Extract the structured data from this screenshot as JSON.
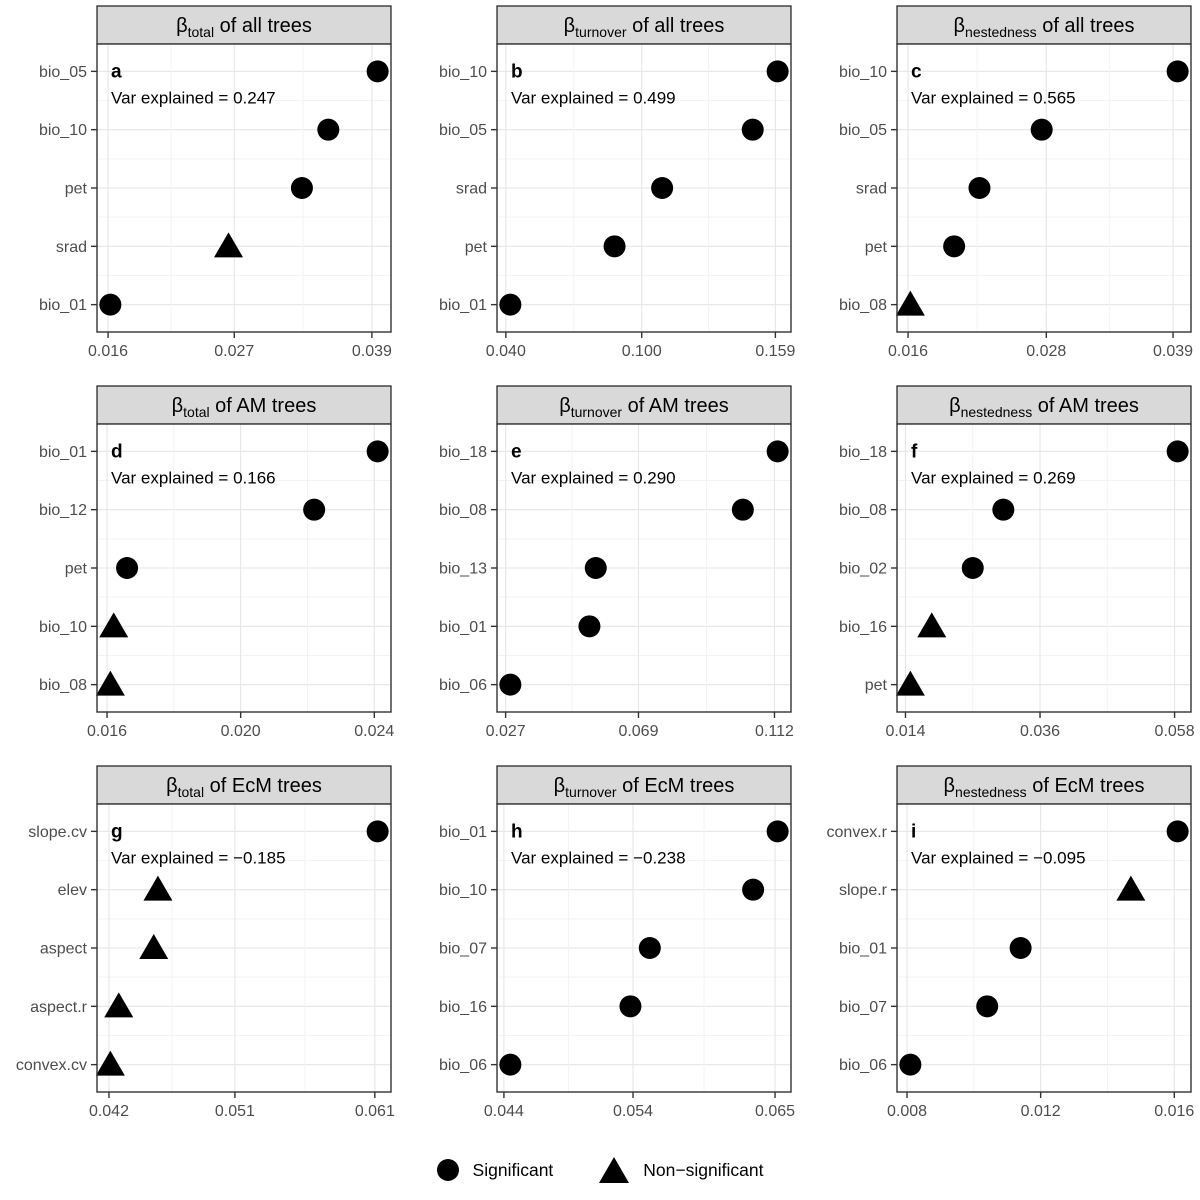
{
  "colors": {
    "strip_bg": "#d9d9d9",
    "strip_border": "#1a1a1a",
    "panel_border": "#333333",
    "grid_major": "#e6e6e6",
    "grid_minor": "#f3f3f3",
    "axis_text": "#4d4d4d",
    "point": "#000000",
    "annotation_text": "#000000"
  },
  "legend": {
    "significant_label": "Significant",
    "non_significant_label": "Non−significant"
  },
  "chart_data": {
    "type": "scatter",
    "description": "3x3 facet grid of variable-importance dot plots; circles = significant predictors, triangles = non-significant predictors",
    "layout": {
      "rows": 3,
      "cols": 3,
      "legend_position": "bottom",
      "grid": true
    },
    "panels": [
      {
        "id": "a",
        "strip": {
          "beta_symbol": "β",
          "beta_sub": "total",
          "suffix": " of all trees"
        },
        "annotation": "Var explained = 0.247",
        "x_ticks": {
          "labels": [
            "0.016",
            "0.027",
            "0.039"
          ],
          "values": [
            0.016,
            0.027,
            0.039
          ]
        },
        "points": [
          {
            "variable": "bio_05",
            "value": 0.0395,
            "significant": true
          },
          {
            "variable": "bio_10",
            "value": 0.0352,
            "significant": true
          },
          {
            "variable": "pet",
            "value": 0.0329,
            "significant": true
          },
          {
            "variable": "srad",
            "value": 0.0265,
            "significant": false
          },
          {
            "variable": "bio_01",
            "value": 0.0162,
            "significant": true
          }
        ]
      },
      {
        "id": "b",
        "strip": {
          "beta_symbol": "β",
          "beta_sub": "turnover",
          "suffix": " of all trees"
        },
        "annotation": "Var explained = 0.499",
        "x_ticks": {
          "labels": [
            "0.040",
            "0.100",
            "0.159"
          ],
          "values": [
            0.04,
            0.1,
            0.159
          ]
        },
        "points": [
          {
            "variable": "bio_10",
            "value": 0.16,
            "significant": true
          },
          {
            "variable": "bio_05",
            "value": 0.149,
            "significant": true
          },
          {
            "variable": "srad",
            "value": 0.109,
            "significant": true
          },
          {
            "variable": "pet",
            "value": 0.088,
            "significant": true
          },
          {
            "variable": "bio_01",
            "value": 0.042,
            "significant": true
          }
        ]
      },
      {
        "id": "c",
        "strip": {
          "beta_symbol": "β",
          "beta_sub": "nestedness",
          "suffix": " of all trees"
        },
        "annotation": "Var explained = 0.565",
        "x_ticks": {
          "labels": [
            "0.016",
            "0.028",
            "0.039"
          ],
          "values": [
            0.016,
            0.028,
            0.039
          ]
        },
        "points": [
          {
            "variable": "bio_10",
            "value": 0.0394,
            "significant": true
          },
          {
            "variable": "bio_05",
            "value": 0.0276,
            "significant": true
          },
          {
            "variable": "srad",
            "value": 0.0222,
            "significant": true
          },
          {
            "variable": "pet",
            "value": 0.02,
            "significant": true
          },
          {
            "variable": "bio_08",
            "value": 0.0162,
            "significant": false
          }
        ]
      },
      {
        "id": "d",
        "strip": {
          "beta_symbol": "β",
          "beta_sub": "total",
          "suffix": " of AM trees"
        },
        "annotation": "Var explained = 0.166",
        "x_ticks": {
          "labels": [
            "0.016",
            "0.020",
            "0.024"
          ],
          "values": [
            0.016,
            0.02,
            0.024
          ]
        },
        "points": [
          {
            "variable": "bio_01",
            "value": 0.0241,
            "significant": true
          },
          {
            "variable": "bio_12",
            "value": 0.0222,
            "significant": true
          },
          {
            "variable": "pet",
            "value": 0.0166,
            "significant": true
          },
          {
            "variable": "bio_10",
            "value": 0.0162,
            "significant": false
          },
          {
            "variable": "bio_08",
            "value": 0.0161,
            "significant": false
          }
        ]
      },
      {
        "id": "e",
        "strip": {
          "beta_symbol": "β",
          "beta_sub": "turnover",
          "suffix": " of AM trees"
        },
        "annotation": "Var explained = 0.290",
        "x_ticks": {
          "labels": [
            "0.027",
            "0.069",
            "0.112"
          ],
          "values": [
            0.027,
            0.069,
            0.112
          ]
        },
        "points": [
          {
            "variable": "bio_18",
            "value": 0.113,
            "significant": true
          },
          {
            "variable": "bio_08",
            "value": 0.102,
            "significant": true
          },
          {
            "variable": "bio_13",
            "value": 0.0555,
            "significant": true
          },
          {
            "variable": "bio_01",
            "value": 0.0535,
            "significant": true
          },
          {
            "variable": "bio_06",
            "value": 0.0285,
            "significant": true
          }
        ]
      },
      {
        "id": "f",
        "strip": {
          "beta_symbol": "β",
          "beta_sub": "nestedness",
          "suffix": " of AM trees"
        },
        "annotation": "Var explained = 0.269",
        "x_ticks": {
          "labels": [
            "0.014",
            "0.036",
            "0.058"
          ],
          "values": [
            0.014,
            0.036,
            0.058
          ]
        },
        "points": [
          {
            "variable": "bio_18",
            "value": 0.0585,
            "significant": true
          },
          {
            "variable": "bio_08",
            "value": 0.03,
            "significant": true
          },
          {
            "variable": "bio_02",
            "value": 0.025,
            "significant": true
          },
          {
            "variable": "bio_16",
            "value": 0.0183,
            "significant": false
          },
          {
            "variable": "pet",
            "value": 0.0148,
            "significant": false
          }
        ]
      },
      {
        "id": "g",
        "strip": {
          "beta_symbol": "β",
          "beta_sub": "total",
          "suffix": " of EcM trees"
        },
        "annotation": "Var explained = −0.185",
        "x_ticks": {
          "labels": [
            "0.042",
            "0.051",
            "0.061"
          ],
          "values": [
            0.042,
            0.051,
            0.061
          ]
        },
        "points": [
          {
            "variable": "slope.cv",
            "value": 0.0612,
            "significant": true
          },
          {
            "variable": "elev",
            "value": 0.0455,
            "significant": false
          },
          {
            "variable": "aspect",
            "value": 0.0452,
            "significant": false
          },
          {
            "variable": "aspect.r",
            "value": 0.0427,
            "significant": false
          },
          {
            "variable": "convex.cv",
            "value": 0.0421,
            "significant": false
          }
        ]
      },
      {
        "id": "h",
        "strip": {
          "beta_symbol": "β",
          "beta_sub": "turnover",
          "suffix": " of EcM trees"
        },
        "annotation": "Var explained = −0.238",
        "x_ticks": {
          "labels": [
            "0.044",
            "0.054",
            "0.065"
          ],
          "values": [
            0.044,
            0.054,
            0.065
          ]
        },
        "points": [
          {
            "variable": "bio_01",
            "value": 0.0652,
            "significant": true
          },
          {
            "variable": "bio_10",
            "value": 0.0633,
            "significant": true
          },
          {
            "variable": "bio_07",
            "value": 0.0553,
            "significant": true
          },
          {
            "variable": "bio_16",
            "value": 0.0538,
            "significant": true
          },
          {
            "variable": "bio_06",
            "value": 0.0445,
            "significant": true
          }
        ]
      },
      {
        "id": "i",
        "strip": {
          "beta_symbol": "β",
          "beta_sub": "nestedness",
          "suffix": " of EcM trees"
        },
        "annotation": "Var explained = −0.095",
        "x_ticks": {
          "labels": [
            "0.008",
            "0.012",
            "0.016"
          ],
          "values": [
            0.008,
            0.012,
            0.016
          ]
        },
        "points": [
          {
            "variable": "convex.r",
            "value": 0.0161,
            "significant": true
          },
          {
            "variable": "slope.r",
            "value": 0.0147,
            "significant": false
          },
          {
            "variable": "bio_01",
            "value": 0.0114,
            "significant": true
          },
          {
            "variable": "bio_07",
            "value": 0.0104,
            "significant": true
          },
          {
            "variable": "bio_06",
            "value": 0.0081,
            "significant": true
          }
        ]
      }
    ]
  }
}
